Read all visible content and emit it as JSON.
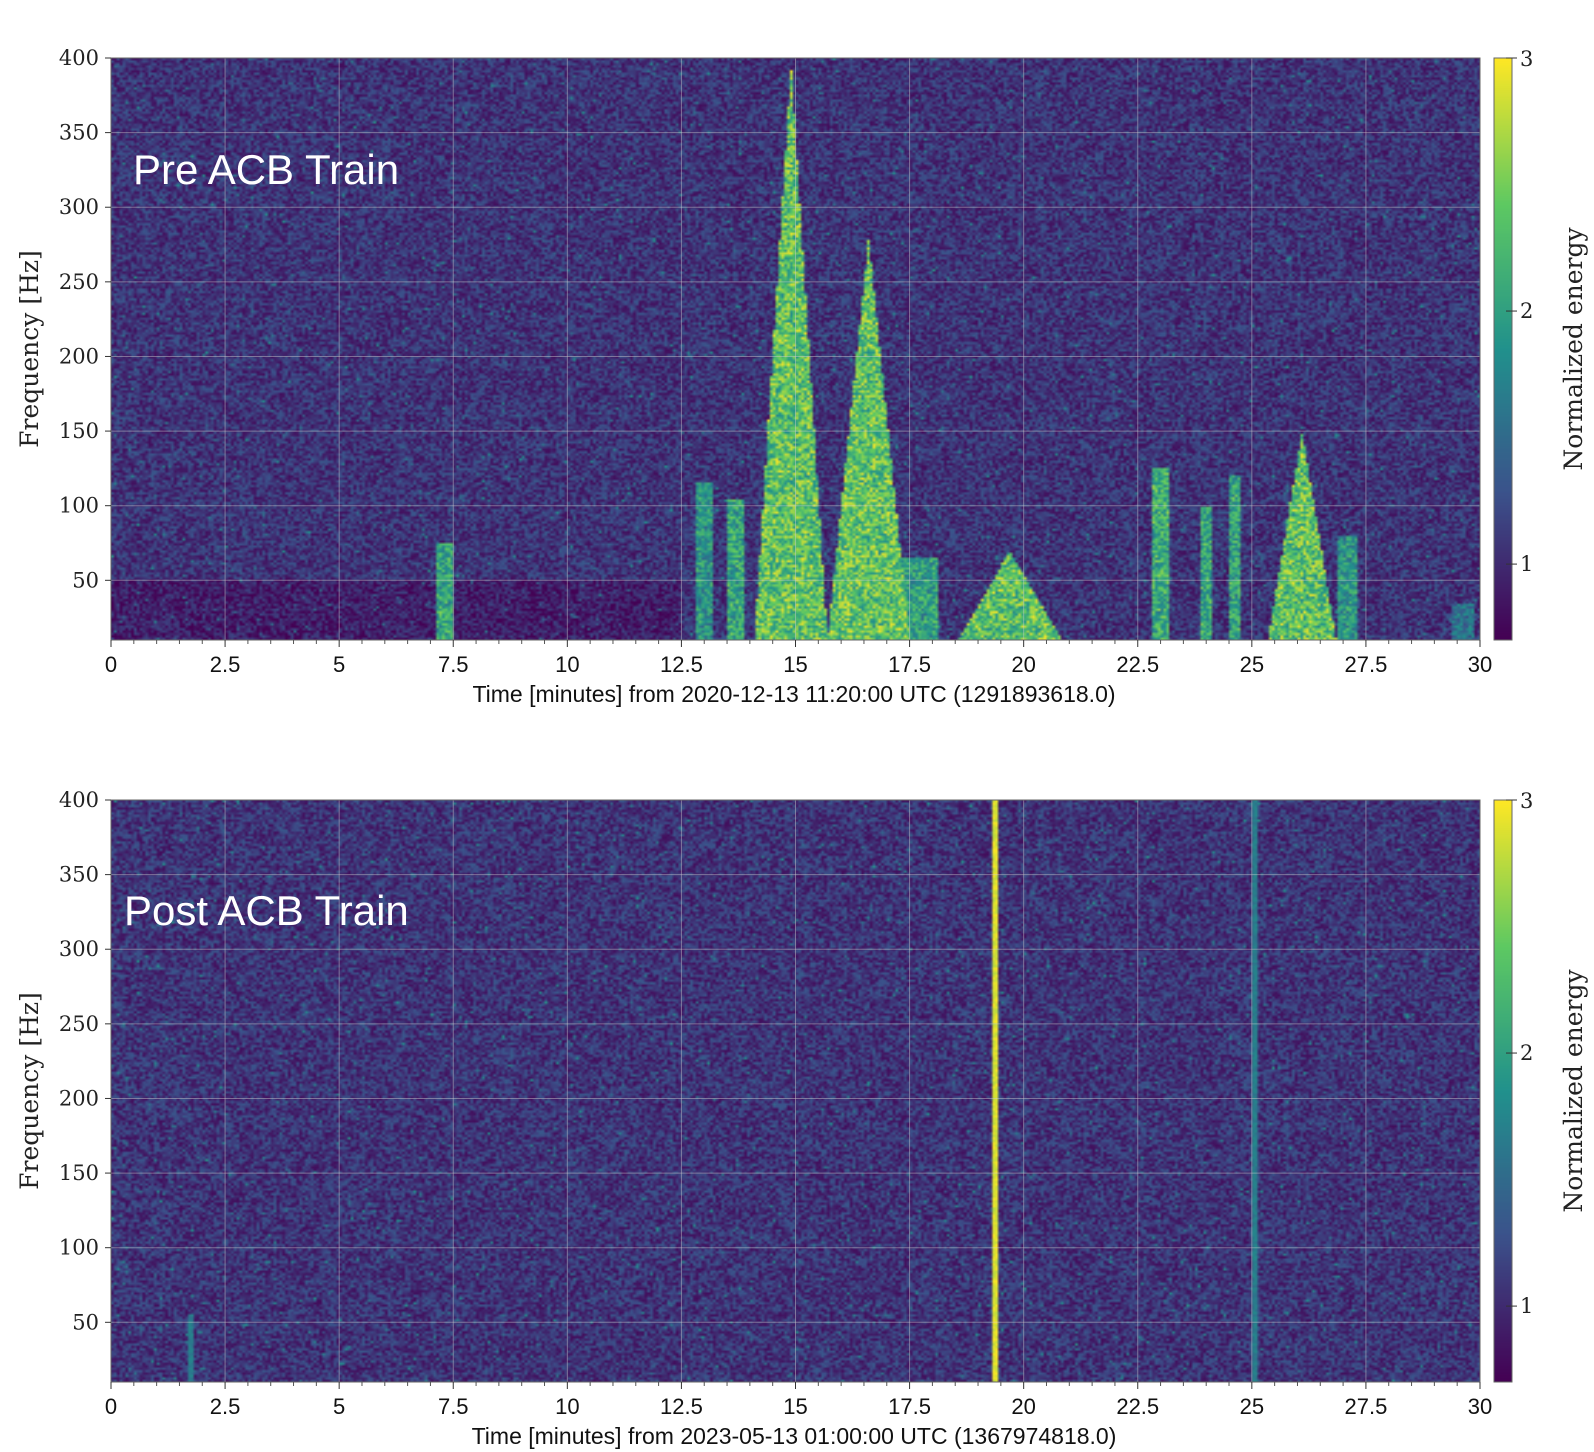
{
  "chart_data": [
    {
      "type": "heatmap",
      "annotation": "Pre ACB Train",
      "xlabel": "Time [minutes] from 2020-12-13 11:20:00 UTC (1291893618.0)",
      "ylabel": "Frequency [Hz]",
      "colorbar_label": "Normalized energy",
      "xlim": [
        0,
        30
      ],
      "ylim": [
        10,
        400
      ],
      "x_ticks": [
        "0",
        "2.5",
        "5",
        "7.5",
        "10",
        "12.5",
        "15",
        "17.5",
        "20",
        "22.5",
        "25",
        "27.5",
        "30"
      ],
      "y_ticks": [
        "50",
        "100",
        "150",
        "200",
        "250",
        "300",
        "350",
        "400"
      ],
      "colorbar_ticks": [
        "1",
        "2",
        "3"
      ],
      "colorbar_range": [
        0.7,
        3
      ],
      "colormap": [
        "#440154",
        "#3b528b",
        "#21918c",
        "#5ec962",
        "#fde725"
      ],
      "grid": true,
      "features": [
        {
          "kind": "band",
          "x": 7.3,
          "width": 0.35,
          "fmax": 75,
          "energy": 2.6
        },
        {
          "kind": "band",
          "x": 13.0,
          "width": 0.35,
          "fmax": 115,
          "energy": 2.4
        },
        {
          "kind": "band",
          "x": 13.7,
          "width": 0.4,
          "fmax": 105,
          "energy": 2.6
        },
        {
          "kind": "cone",
          "x": 14.9,
          "width": 1.6,
          "fmax": 395,
          "energy": 3.0
        },
        {
          "kind": "cone",
          "x": 16.6,
          "width": 1.8,
          "fmax": 280,
          "energy": 3.0
        },
        {
          "kind": "band",
          "x": 17.6,
          "width": 1.0,
          "fmax": 65,
          "energy": 2.5
        },
        {
          "kind": "cone",
          "x": 19.7,
          "width": 2.3,
          "fmax": 70,
          "energy": 3.0
        },
        {
          "kind": "band",
          "x": 23.0,
          "width": 0.35,
          "fmax": 125,
          "energy": 2.7
        },
        {
          "kind": "band",
          "x": 24.0,
          "width": 0.3,
          "fmax": 100,
          "energy": 2.6
        },
        {
          "kind": "band",
          "x": 24.6,
          "width": 0.25,
          "fmax": 120,
          "energy": 2.6
        },
        {
          "kind": "cone",
          "x": 26.1,
          "width": 1.5,
          "fmax": 150,
          "energy": 3.0
        },
        {
          "kind": "band",
          "x": 27.1,
          "width": 0.4,
          "fmax": 80,
          "energy": 2.4
        },
        {
          "kind": "band",
          "x": 29.6,
          "width": 0.5,
          "fmax": 35,
          "energy": 2.0
        }
      ]
    },
    {
      "type": "heatmap",
      "annotation": "Post ACB Train",
      "xlabel": "Time [minutes] from 2023-05-13 01:00:00 UTC (1367974818.0)",
      "ylabel": "Frequency [Hz]",
      "colorbar_label": "Normalized energy",
      "xlim": [
        0,
        30
      ],
      "ylim": [
        10,
        400
      ],
      "x_ticks": [
        "0",
        "2.5",
        "5",
        "7.5",
        "10",
        "12.5",
        "15",
        "17.5",
        "20",
        "22.5",
        "25",
        "27.5",
        "30"
      ],
      "y_ticks": [
        "50",
        "100",
        "150",
        "200",
        "250",
        "300",
        "350",
        "400"
      ],
      "colorbar_ticks": [
        "1",
        "2",
        "3"
      ],
      "colorbar_range": [
        0.7,
        3
      ],
      "colormap": [
        "#440154",
        "#3b528b",
        "#21918c",
        "#5ec962",
        "#fde725"
      ],
      "grid": true,
      "features": [
        {
          "kind": "line",
          "x": 19.35,
          "width": 0.12,
          "fmax": 400,
          "energy": 3.0
        },
        {
          "kind": "line",
          "x": 25.05,
          "width": 0.1,
          "fmax": 400,
          "energy": 1.8
        },
        {
          "kind": "line",
          "x": 1.75,
          "width": 0.08,
          "fmax": 55,
          "energy": 1.8
        }
      ]
    }
  ]
}
